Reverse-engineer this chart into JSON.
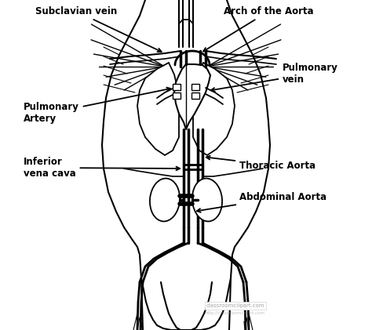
{
  "bg_color": "#ffffff",
  "line_color": "#000000",
  "lw": 1.3,
  "labels": {
    "subclavian_vein": "Subclavian vein",
    "arch_aorta": "Arch of the Aorta",
    "pulmonary_vein": "Pulmonary\nvein",
    "pulmonary_artery": "Pulmonary\nArtery",
    "inferior_vena_cava": "Inferior\nvena cava",
    "thoracic_aorta": "Thoracic Aorta",
    "abdominal_aorta": "Abdominal Aorta",
    "watermark": "classroomclipart.com"
  }
}
